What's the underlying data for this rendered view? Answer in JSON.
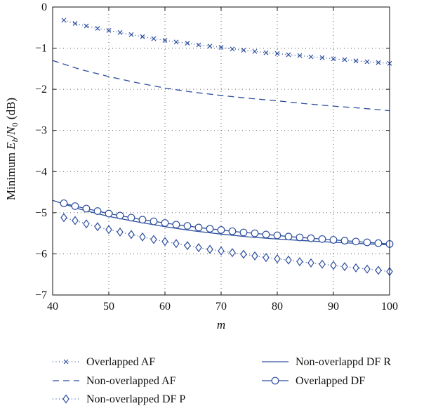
{
  "chart_data": {
    "type": "line",
    "xlabel": "m",
    "ylabel_parts": {
      "pre": "Minimum ",
      "E": "E",
      "b": "b",
      "slash": "/",
      "N": "N",
      "zero": "0",
      "post": " (dB)"
    },
    "xlim": [
      40,
      100
    ],
    "ylim": [
      -7,
      0
    ],
    "xticks": [
      "40",
      "50",
      "60",
      "70",
      "80",
      "90",
      "100"
    ],
    "yticks": [
      "−7",
      "−6",
      "−5",
      "−4",
      "−3",
      "−2",
      "−1",
      "0"
    ],
    "grid": true,
    "legend_position": "below",
    "line_color": "#2d4f9e",
    "series": [
      {
        "name": "Overlapped AF",
        "line": "dotted",
        "marker": "x",
        "x": [
          42,
          44,
          46,
          48,
          50,
          52,
          54,
          56,
          58,
          60,
          62,
          64,
          66,
          68,
          70,
          72,
          74,
          76,
          78,
          80,
          82,
          84,
          86,
          88,
          90,
          92,
          94,
          96,
          98,
          100
        ],
        "y": [
          -0.32,
          -0.4,
          -0.46,
          -0.52,
          -0.57,
          -0.62,
          -0.67,
          -0.72,
          -0.77,
          -0.81,
          -0.85,
          -0.88,
          -0.92,
          -0.95,
          -0.98,
          -1.02,
          -1.05,
          -1.08,
          -1.11,
          -1.13,
          -1.16,
          -1.18,
          -1.21,
          -1.23,
          -1.26,
          -1.28,
          -1.31,
          -1.33,
          -1.35,
          -1.37
        ]
      },
      {
        "name": "Non-overlapped AF",
        "line": "dashed",
        "marker": "none",
        "x": [
          40,
          45,
          50,
          55,
          60,
          65,
          70,
          75,
          80,
          85,
          90,
          95,
          100
        ],
        "y": [
          -1.3,
          -1.52,
          -1.69,
          -1.84,
          -1.97,
          -2.07,
          -2.15,
          -2.22,
          -2.28,
          -2.35,
          -2.41,
          -2.46,
          -2.52
        ]
      },
      {
        "name": "Non-overlapped DF P",
        "line": "dotted",
        "marker": "diamond",
        "x": [
          42,
          44,
          46,
          48,
          50,
          52,
          54,
          56,
          58,
          60,
          62,
          64,
          66,
          68,
          70,
          72,
          74,
          76,
          78,
          80,
          82,
          84,
          86,
          88,
          90,
          92,
          94,
          96,
          98,
          100
        ],
        "y": [
          -5.12,
          -5.19,
          -5.27,
          -5.34,
          -5.41,
          -5.47,
          -5.53,
          -5.59,
          -5.65,
          -5.7,
          -5.75,
          -5.8,
          -5.85,
          -5.89,
          -5.93,
          -5.97,
          -6.01,
          -6.05,
          -6.09,
          -6.12,
          -6.15,
          -6.19,
          -6.22,
          -6.25,
          -6.28,
          -6.31,
          -6.34,
          -6.37,
          -6.4,
          -6.43
        ]
      },
      {
        "name": "Non-overlappd DF R",
        "line": "solid",
        "marker": "none",
        "x": [
          40,
          45,
          50,
          55,
          60,
          65,
          70,
          75,
          80,
          85,
          90,
          95,
          100
        ],
        "y": [
          -4.7,
          -4.92,
          -5.09,
          -5.22,
          -5.34,
          -5.44,
          -5.52,
          -5.59,
          -5.64,
          -5.68,
          -5.72,
          -5.75,
          -5.78
        ]
      },
      {
        "name": "Overlapped DF",
        "line": "solid",
        "marker": "circle",
        "x": [
          42,
          44,
          46,
          48,
          50,
          52,
          54,
          56,
          58,
          60,
          62,
          64,
          66,
          68,
          70,
          72,
          74,
          76,
          78,
          80,
          82,
          84,
          86,
          88,
          90,
          92,
          94,
          96,
          98,
          100
        ],
        "y": [
          -4.77,
          -4.84,
          -4.9,
          -4.96,
          -5.02,
          -5.07,
          -5.12,
          -5.17,
          -5.21,
          -5.25,
          -5.29,
          -5.32,
          -5.36,
          -5.39,
          -5.42,
          -5.45,
          -5.48,
          -5.5,
          -5.53,
          -5.55,
          -5.58,
          -5.6,
          -5.62,
          -5.64,
          -5.66,
          -5.68,
          -5.7,
          -5.72,
          -5.74,
          -5.76
        ]
      }
    ],
    "legend_order": [
      0,
      3,
      1,
      4,
      2
    ]
  }
}
